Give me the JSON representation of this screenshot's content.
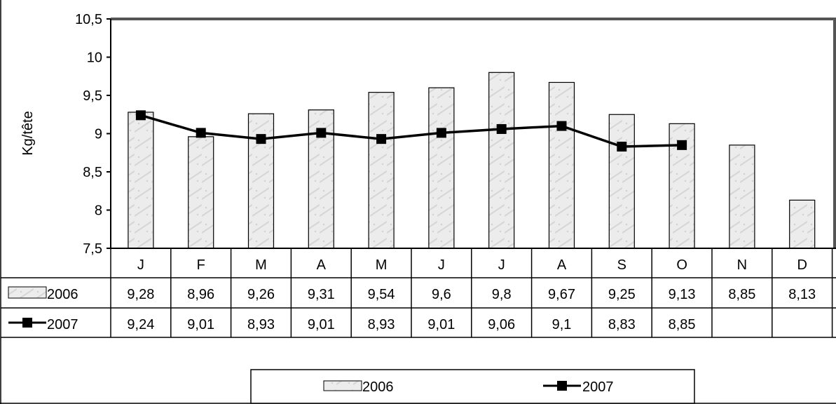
{
  "chart_data": {
    "type": "bar",
    "categories": [
      "J",
      "F",
      "M",
      "A",
      "M",
      "J",
      "J",
      "A",
      "S",
      "O",
      "N",
      "D"
    ],
    "series": [
      {
        "name": "2006",
        "type": "bar",
        "values": [
          9.28,
          8.96,
          9.26,
          9.31,
          9.54,
          9.6,
          9.8,
          9.67,
          9.25,
          9.13,
          8.85,
          8.13
        ],
        "labels": [
          "9,28",
          "8,96",
          "9,26",
          "9,31",
          "9,54",
          "9,6",
          "9,8",
          "9,67",
          "9,25",
          "9,13",
          "8,85",
          "8,13"
        ]
      },
      {
        "name": "2007",
        "type": "line",
        "values": [
          9.24,
          9.01,
          8.93,
          9.01,
          8.93,
          9.01,
          9.06,
          9.1,
          8.83,
          8.85,
          null,
          null
        ],
        "labels": [
          "9,24",
          "9,01",
          "8,93",
          "9,01",
          "8,93",
          "9,01",
          "9,06",
          "9,1",
          "8,83",
          "8,85",
          "",
          ""
        ]
      }
    ],
    "ylabel": "Kg/tête",
    "xlabel": "",
    "ylim": [
      7.5,
      10.5
    ],
    "yticks": [
      7.5,
      8,
      8.5,
      9,
      9.5,
      10,
      10.5
    ],
    "ytick_labels": [
      "7,5",
      "8",
      "8,5",
      "9",
      "9,5",
      "10",
      "10,5"
    ],
    "grid": false,
    "data_table": true,
    "legend_position": "bottom",
    "colors": {
      "bar_fill": "#ececec",
      "bar_stroke": "#000000",
      "line": "#000000",
      "marker": "#000000"
    }
  }
}
